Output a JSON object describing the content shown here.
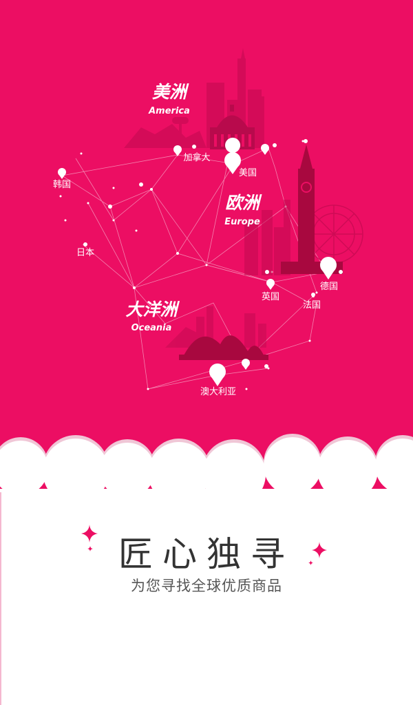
{
  "colors": {
    "brand": "#ec0e63",
    "white": "#ffffff",
    "text_dark": "#333333",
    "text_mid": "#555555"
  },
  "regions": [
    {
      "cn": "美洲",
      "en": "America"
    },
    {
      "cn": "欧洲",
      "en": "Europe"
    },
    {
      "cn": "大洋洲",
      "en": "Oceania"
    }
  ],
  "countries": [
    "加拿大",
    "美国",
    "韩国",
    "日本",
    "英国",
    "德国",
    "法国",
    "澳大利亚"
  ],
  "headline": "匠心独寻",
  "subline": "为您寻找全球优质商品",
  "icons": [
    "map-pin-icon",
    "sparkle-icon",
    "cloud-shape"
  ]
}
